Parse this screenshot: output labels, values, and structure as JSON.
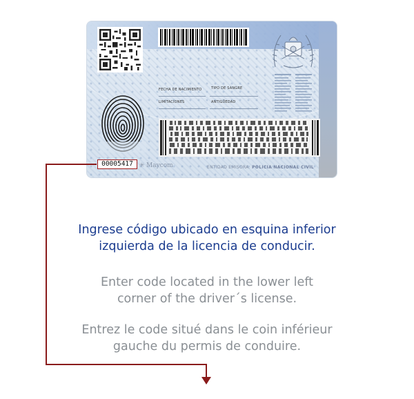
{
  "card": {
    "serial_number": "00005417",
    "labels": {
      "birth_date": "FECHA DE NACIMIENTO",
      "blood_type": "TIPO DE SANGRE",
      "limitations": "LIMITACIONES",
      "seniority": "ANTIGÜEDAD"
    },
    "brand": "Maycom",
    "issuer_label": "ENTIDAD EMISORA:",
    "issuer_name": "POLICIA NACIONAL CIVIL"
  },
  "instructions": {
    "es_line1": "Ingrese código ubicado en esquina inferior",
    "es_line2": "izquierda de la licencia de conducir.",
    "en_line1": "Enter code located in the lower left",
    "en_line2": "corner of the driver´s license.",
    "fr_line1": "Entrez le code situé dans le coin inférieur",
    "fr_line2": "gauche du permis de conduire."
  },
  "colors": {
    "accent_red": "#8a1b1b",
    "spanish_text": "#1b3c8f",
    "secondary_text": "#8a8f94"
  }
}
